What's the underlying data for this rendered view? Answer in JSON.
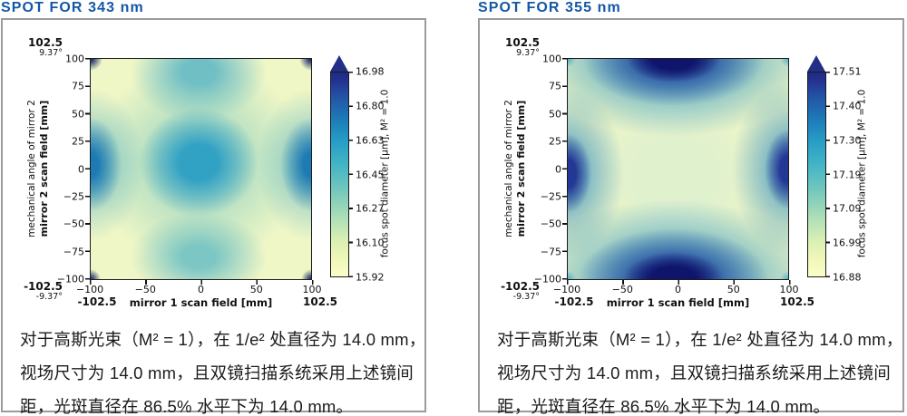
{
  "accent_color": "#1457a5",
  "panels": [
    {
      "title": "SPOT FOR 343 nm",
      "corner_top": {
        "field": "102.5",
        "angle": "9.37°"
      },
      "corner_bottom": {
        "field": "-102.5",
        "angle": "-9.37°"
      },
      "ylabel_line1": "mechanical angle of mirror 2",
      "ylabel_line2": "mirror 2 scan field [mm]",
      "xlabel": "mirror 1 scan field [mm]",
      "x_extent_left": "-102.5",
      "x_extent_right": "102.5",
      "y_ticks": [
        "100",
        "75",
        "50",
        "25",
        "0",
        "−25",
        "−50",
        "−75",
        "−100"
      ],
      "x_ticks": [
        "−100",
        "−50",
        "0",
        "50",
        "100"
      ],
      "colorbar": {
        "ticks": [
          "16.98",
          "16.80",
          "16.63",
          "16.45",
          "16.27",
          "16.10",
          "15.92"
        ],
        "label": "focus spot diameter [µm], M² = 1.0"
      },
      "caption_lines": [
        "对于高斯光束（M² = 1），在 1/e² 处直径为 14.0 mm，",
        "视场尺寸为 14.0 mm，且双镜扫描系统采用上述镜间",
        "距，光斑直径在 86.5% 水平下为 14.0 mm。"
      ]
    },
    {
      "title": "SPOT FOR 355 nm",
      "corner_top": {
        "field": "102.5",
        "angle": "9.37°"
      },
      "corner_bottom": {
        "field": "-102.5",
        "angle": "-9.37°"
      },
      "ylabel_line1": "mechanical angle of mirror 2",
      "ylabel_line2": "mirror 2 scan field [mm]",
      "xlabel": "mirror 1 scan field [mm]",
      "x_extent_left": "-102.5",
      "x_extent_right": "102.5",
      "y_ticks": [
        "100",
        "75",
        "50",
        "25",
        "0",
        "−25",
        "−50",
        "−75",
        "−100"
      ],
      "x_ticks": [
        "−100",
        "−50",
        "0",
        "50",
        "100"
      ],
      "colorbar": {
        "ticks": [
          "17.51",
          "17.40",
          "17.30",
          "17.19",
          "17.09",
          "16.99",
          "16.88"
        ],
        "label": "focus spot diameter [µm], M² = 1.0"
      },
      "caption_lines": [
        "对于高斯光束（M² = 1），在 1/e² 处直径为 14.0 mm，",
        "视场尺寸为 14.0 mm，且双镜扫描系统采用上述镜间",
        "距，光斑直径在 86.5% 水平下为 14.0 mm。"
      ]
    }
  ],
  "chart_data": [
    {
      "type": "heatmap",
      "title": "SPOT FOR 343 nm",
      "xlabel": "mirror 1 scan field [mm]",
      "ylabel": "mechanical angle of mirror 2 / mirror 2 scan field [mm]",
      "x_ticks": [
        -100,
        -50,
        0,
        50,
        100
      ],
      "y_ticks": [
        100,
        75,
        50,
        25,
        0,
        -25,
        -50,
        -75,
        -100
      ],
      "scan_field_extent_mm": [
        -102.5,
        102.5
      ],
      "mechanical_angle_extent_deg": [
        -9.37,
        9.37
      ],
      "colorbar_label": "focus spot diameter [µm], M² = 1.0",
      "colorbar_ticks": [
        16.98,
        16.8,
        16.63,
        16.45,
        16.27,
        16.1,
        15.92
      ],
      "value_range_um": [
        15.92,
        16.98
      ],
      "colorbar_extend": "max",
      "colormap": "YlGnBu (pale yellow = small spot diameter, dark navy = large)",
      "pattern": "moderate teal maximum (~16.6 µm) at the field centre and at the left/right edge midpoints; pale yellow minima (~16.0 µm) in the regions between centre and corners; tiny dark-navy peaks (~17.0 µm) at the four extreme corners; lighter teal lobes at top-centre and bottom-centre"
    },
    {
      "type": "heatmap",
      "title": "SPOT FOR 355 nm",
      "xlabel": "mirror 1 scan field [mm]",
      "ylabel": "mechanical angle of mirror 2 / mirror 2 scan field [mm]",
      "x_ticks": [
        -100,
        -50,
        0,
        50,
        100
      ],
      "y_ticks": [
        100,
        75,
        50,
        25,
        0,
        -25,
        -50,
        -75,
        -100
      ],
      "scan_field_extent_mm": [
        -102.5,
        102.5
      ],
      "mechanical_angle_extent_deg": [
        -9.37,
        9.37
      ],
      "colorbar_label": "focus spot diameter [µm], M² = 1.0",
      "colorbar_ticks": [
        17.51,
        17.4,
        17.3,
        17.19,
        17.09,
        16.99,
        16.88
      ],
      "value_range_um": [
        16.88,
        17.51
      ],
      "colorbar_extend": "max",
      "colormap": "YlGnBu (pale yellow = small spot diameter, dark navy = large)",
      "pattern": "large dark-navy maxima (~17.5 µm) centred on the top and bottom edges, strong blue maxima at the left/right edge midpoints, pale yellow-green minimum (~16.9 µm) over the central region and toward the corners, small teal specks at the extreme corners"
    }
  ]
}
